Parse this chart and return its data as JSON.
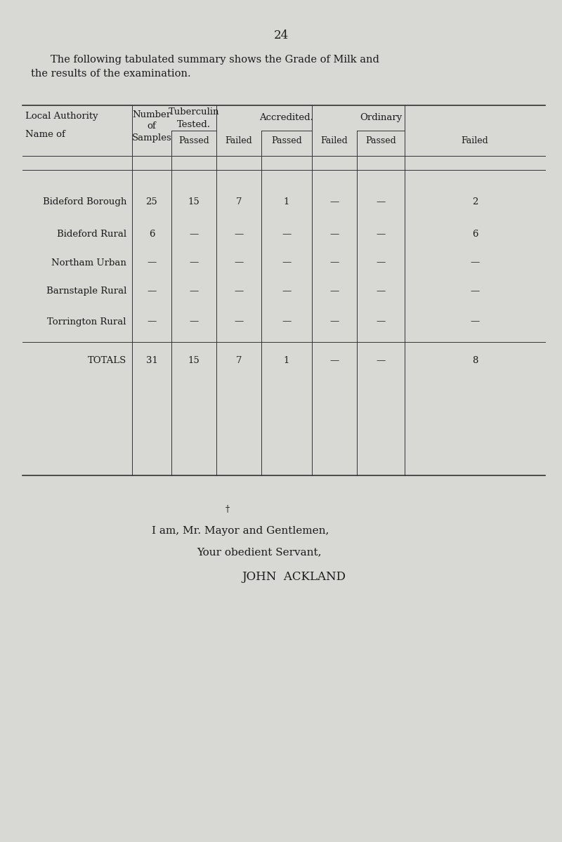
{
  "page_number": "24",
  "intro_text_line1": "The following tabulated summary shows the Grade of Milk and",
  "intro_text_line2": "the results of the examination.",
  "background_color": "#d8d8d5",
  "text_color": "#1a1a1a",
  "rows": [
    [
      "Bideford Borough",
      "25",
      "15",
      "7",
      "1",
      "—",
      "—",
      "2"
    ],
    [
      "Bideford Rural",
      "6",
      "—",
      "—",
      "—",
      "—",
      "—",
      "6"
    ],
    [
      "Northam Urban",
      "—",
      "—",
      "—",
      "—",
      "—",
      "—",
      "—"
    ],
    [
      "Barnstaple Rural",
      "—",
      "—",
      "—",
      "—",
      "—",
      "—",
      "—"
    ],
    [
      "Torrington Rural",
      "—",
      "—",
      "—",
      "—",
      "—",
      "—",
      "—"
    ]
  ],
  "totals_row": [
    "Totals",
    "31",
    "15",
    "7",
    "1",
    "—",
    "—",
    "8"
  ],
  "closing_line1": "I am, Mr. Mayor and Gentlemen,",
  "closing_line2": "Your obedient Servant,",
  "closing_line3": "JOHN  ACKLAND",
  "dagger": "†"
}
